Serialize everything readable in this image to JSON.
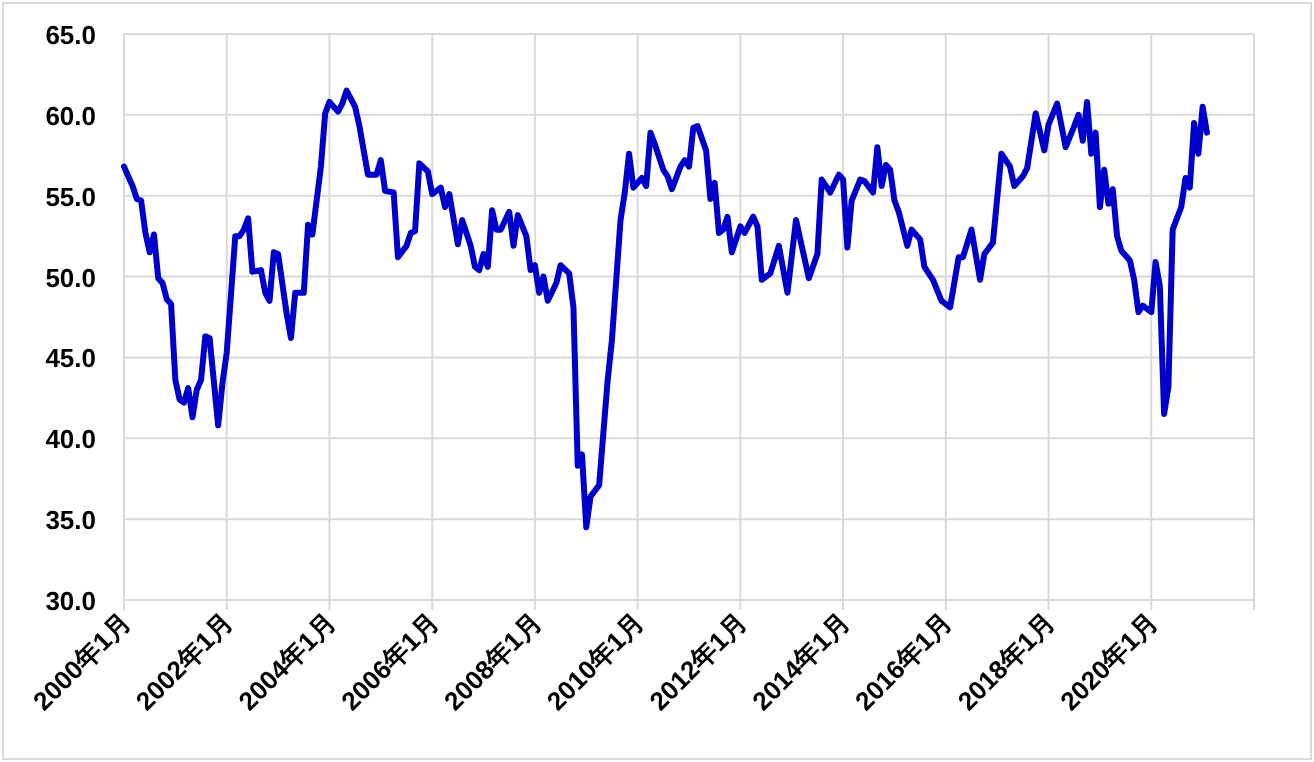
{
  "chart_data": {
    "type": "line",
    "xlim": [
      "2000-01",
      "2022-01"
    ],
    "ylim": [
      30,
      65
    ],
    "yticks": [
      {
        "value": 30,
        "label": "30.0"
      },
      {
        "value": 35,
        "label": "35.0"
      },
      {
        "value": 40,
        "label": "40.0"
      },
      {
        "value": 45,
        "label": "45.0"
      },
      {
        "value": 50,
        "label": "50.0"
      },
      {
        "value": 55,
        "label": "55.0"
      },
      {
        "value": 60,
        "label": "60.0"
      },
      {
        "value": 65,
        "label": "65.0"
      }
    ],
    "xticks": [
      {
        "value": "2000-01",
        "label": "2000年1月"
      },
      {
        "value": "2002-01",
        "label": "2002年1月"
      },
      {
        "value": "2004-01",
        "label": "2004年1月"
      },
      {
        "value": "2006-01",
        "label": "2006年1月"
      },
      {
        "value": "2008-01",
        "label": "2008年1月"
      },
      {
        "value": "2010-01",
        "label": "2010年1月"
      },
      {
        "value": "2012-01",
        "label": "2012年1月"
      },
      {
        "value": "2014-01",
        "label": "2014年1月"
      },
      {
        "value": "2016-01",
        "label": "2016年1月"
      },
      {
        "value": "2018-01",
        "label": "2018年1月"
      },
      {
        "value": "2020-01",
        "label": "2020年1月"
      },
      {
        "value": "2022-01",
        "label": null
      }
    ],
    "grid": true,
    "marker": "none",
    "line_style": "solid",
    "x": [
      "2000-01",
      "2000-03",
      "2000-04",
      "2000-05",
      "2000-06",
      "2000-07",
      "2000-08",
      "2000-09",
      "2000-10",
      "2000-11",
      "2000-12",
      "2001-01",
      "2001-02",
      "2001-03",
      "2001-04",
      "2001-05",
      "2001-06",
      "2001-07",
      "2001-08",
      "2001-09",
      "2001-11",
      "2001-12",
      "2002-01",
      "2002-03",
      "2002-04",
      "2002-05",
      "2002-06",
      "2002-07",
      "2002-09",
      "2002-10",
      "2002-11",
      "2002-12",
      "2003-01",
      "2003-03",
      "2003-04",
      "2003-05",
      "2003-07",
      "2003-08",
      "2003-09",
      "2003-11",
      "2003-12",
      "2004-01",
      "2004-03",
      "2004-04",
      "2004-05",
      "2004-07",
      "2004-08",
      "2004-10",
      "2004-12",
      "2005-01",
      "2005-02",
      "2005-04",
      "2005-05",
      "2005-07",
      "2005-08",
      "2005-09",
      "2005-10",
      "2005-12",
      "2006-01",
      "2006-03",
      "2006-04",
      "2006-05",
      "2006-07",
      "2006-08",
      "2006-10",
      "2006-11",
      "2006-12",
      "2007-01",
      "2007-02",
      "2007-03",
      "2007-04",
      "2007-05",
      "2007-07",
      "2007-08",
      "2007-09",
      "2007-11",
      "2007-12",
      "2008-01",
      "2008-02",
      "2008-03",
      "2008-04",
      "2008-06",
      "2008-07",
      "2008-09",
      "2008-10",
      "2008-11",
      "2008-12",
      "2009-01",
      "2009-02",
      "2009-04",
      "2009-06",
      "2009-07",
      "2009-09",
      "2009-10",
      "2009-11",
      "2009-12",
      "2010-02",
      "2010-03",
      "2010-04",
      "2010-05",
      "2010-07",
      "2010-08",
      "2010-09",
      "2010-11",
      "2010-12",
      "2011-01",
      "2011-02",
      "2011-03",
      "2011-05",
      "2011-06",
      "2011-07",
      "2011-08",
      "2011-09",
      "2011-10",
      "2011-11",
      "2012-01",
      "2012-02",
      "2012-04",
      "2012-05",
      "2012-06",
      "2012-08",
      "2012-10",
      "2012-12",
      "2013-02",
      "2013-05",
      "2013-07",
      "2013-08",
      "2013-10",
      "2013-12",
      "2014-01",
      "2014-02",
      "2014-03",
      "2014-05",
      "2014-06",
      "2014-08",
      "2014-09",
      "2014-10",
      "2014-11",
      "2014-12",
      "2015-01",
      "2015-02",
      "2015-04",
      "2015-05",
      "2015-07",
      "2015-08",
      "2015-10",
      "2015-12",
      "2016-02",
      "2016-04",
      "2016-05",
      "2016-07",
      "2016-09",
      "2016-10",
      "2016-12",
      "2017-02",
      "2017-04",
      "2017-05",
      "2017-07",
      "2017-08",
      "2017-10",
      "2017-12",
      "2018-01",
      "2018-03",
      "2018-05",
      "2018-07",
      "2018-08",
      "2018-09",
      "2018-10",
      "2018-11",
      "2018-12",
      "2019-01",
      "2019-02",
      "2019-03",
      "2019-04",
      "2019-05",
      "2019-06",
      "2019-08",
      "2019-09",
      "2019-10",
      "2019-11",
      "2020-01",
      "2020-02",
      "2020-03",
      "2020-04",
      "2020-05",
      "2020-06",
      "2020-08",
      "2020-09",
      "2020-10",
      "2020-11",
      "2020-12",
      "2021-01",
      "2021-02"
    ],
    "series": [
      {
        "color": "#0000cc",
        "values": [
          56.8,
          55.6,
          54.8,
          54.7,
          52.7,
          51.5,
          52.6,
          49.9,
          49.6,
          48.6,
          48.3,
          43.6,
          42.4,
          42.2,
          43.1,
          41.3,
          43.0,
          43.6,
          46.3,
          46.2,
          40.8,
          43.4,
          45.3,
          52.5,
          52.5,
          52.9,
          53.6,
          50.3,
          50.4,
          49.0,
          48.5,
          51.5,
          51.4,
          47.7,
          46.2,
          49.0,
          49.0,
          53.2,
          52.6,
          56.8,
          60.1,
          60.8,
          60.2,
          60.7,
          61.5,
          60.5,
          59.3,
          56.3,
          56.3,
          57.2,
          55.3,
          55.2,
          51.2,
          51.9,
          52.7,
          52.8,
          57.0,
          56.5,
          55.1,
          55.5,
          54.3,
          55.1,
          52.0,
          53.5,
          51.9,
          50.6,
          50.4,
          51.4,
          50.6,
          54.1,
          52.9,
          52.9,
          54.0,
          51.9,
          53.8,
          52.5,
          50.4,
          50.7,
          49.0,
          50.0,
          48.5,
          49.6,
          50.7,
          50.2,
          48.1,
          38.3,
          39.0,
          34.5,
          36.4,
          37.1,
          43.6,
          46.1,
          53.5,
          55.2,
          57.6,
          55.5,
          56.1,
          55.6,
          58.9,
          58.2,
          56.6,
          56.2,
          55.4,
          56.8,
          57.2,
          56.8,
          59.2,
          59.3,
          57.8,
          54.8,
          55.8,
          52.7,
          52.9,
          53.7,
          51.5,
          53.1,
          52.7,
          53.7,
          53.1,
          49.8,
          50.2,
          51.9,
          49.0,
          53.5,
          49.9,
          51.4,
          56.0,
          55.2,
          56.3,
          56.0,
          51.8,
          54.7,
          56.0,
          55.9,
          55.2,
          58.0,
          55.6,
          56.9,
          56.6,
          54.7,
          54.0,
          51.9,
          52.9,
          52.3,
          50.6,
          49.8,
          48.5,
          48.1,
          51.2,
          51.2,
          52.9,
          49.8,
          51.4,
          52.1,
          57.6,
          56.8,
          55.6,
          56.2,
          56.7,
          60.1,
          57.8,
          59.4,
          60.7,
          58.0,
          59.3,
          60.0,
          58.4,
          60.8,
          57.6,
          58.9,
          54.3,
          56.6,
          54.5,
          55.4,
          52.5,
          51.6,
          51.0,
          49.8,
          47.8,
          48.2,
          47.8,
          50.9,
          49.4,
          41.5,
          43.2,
          52.9,
          54.3,
          56.1,
          55.5,
          59.5,
          57.6,
          60.5,
          58.9
        ]
      }
    ]
  }
}
